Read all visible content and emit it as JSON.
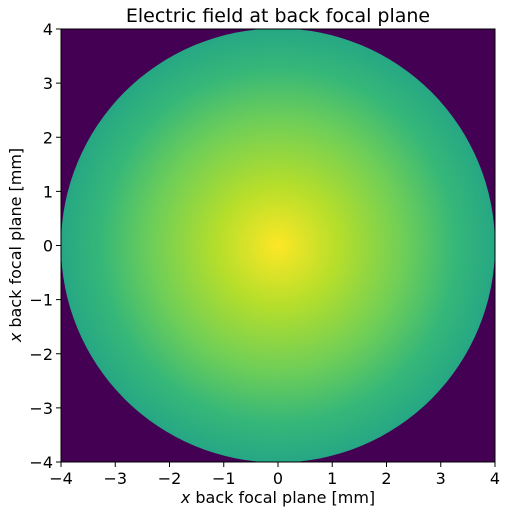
{
  "chart_data": {
    "type": "heatmap",
    "title": "Electric field at back focal plane",
    "xlabel_var": "x",
    "xlabel_rest": " back focal plane [mm]",
    "ylabel_var": "x",
    "ylabel_rest": " back focal plane [mm]",
    "xlim": [
      -4,
      4
    ],
    "ylim": [
      -4,
      4
    ],
    "x_ticks": [
      -4,
      -3,
      -2,
      -1,
      0,
      1,
      2,
      3,
      4
    ],
    "y_ticks": [
      -4,
      -3,
      -2,
      -1,
      0,
      1,
      2,
      3,
      4
    ],
    "tick_labels_x": [
      "−4",
      "−3",
      "−2",
      "−1",
      "0",
      "1",
      "2",
      "3",
      "4"
    ],
    "tick_labels_y": [
      "−4",
      "−3",
      "−2",
      "−1",
      "0",
      "1",
      "2",
      "3",
      "4"
    ],
    "aperture": {
      "center": [
        0,
        0
      ],
      "radius": 4.0
    },
    "field_profile": "gaussian",
    "field_waist": 3.6,
    "colormap": "viridis",
    "colors": {
      "background": "#440154",
      "center": "#fde725",
      "mid_high": "#b5de2b",
      "mid": "#6ece58",
      "mid_low": "#35b779",
      "edge": "#26a784"
    },
    "grid": false,
    "legend": "none"
  }
}
